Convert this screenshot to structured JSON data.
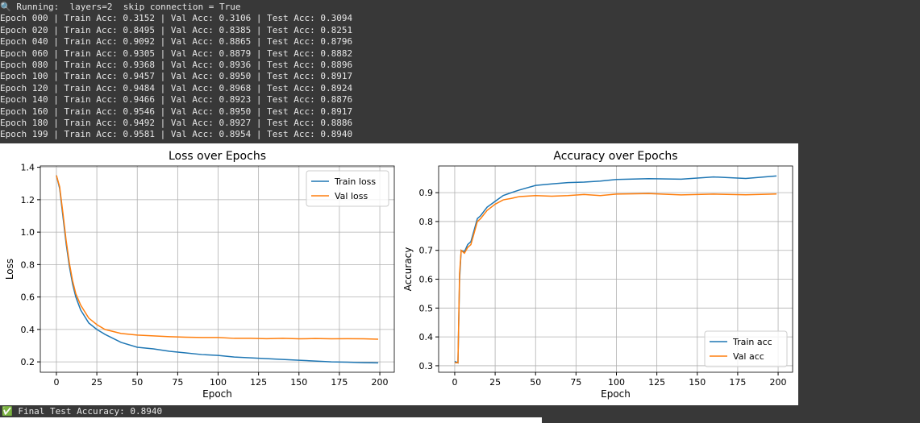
{
  "console": {
    "lines": [
      "🔍 Running:  layers=2  skip connection = True",
      "Epoch 000 | Train Acc: 0.3152 | Val Acc: 0.3106 | Test Acc: 0.3094",
      "Epoch 020 | Train Acc: 0.8495 | Val Acc: 0.8385 | Test Acc: 0.8251",
      "Epoch 040 | Train Acc: 0.9092 | Val Acc: 0.8865 | Test Acc: 0.8796",
      "Epoch 060 | Train Acc: 0.9305 | Val Acc: 0.8879 | Test Acc: 0.8882",
      "Epoch 080 | Train Acc: 0.9368 | Val Acc: 0.8936 | Test Acc: 0.8896",
      "Epoch 100 | Train Acc: 0.9457 | Val Acc: 0.8950 | Test Acc: 0.8917",
      "Epoch 120 | Train Acc: 0.9484 | Val Acc: 0.8968 | Test Acc: 0.8924",
      "Epoch 140 | Train Acc: 0.9466 | Val Acc: 0.8923 | Test Acc: 0.8876",
      "Epoch 160 | Train Acc: 0.9546 | Val Acc: 0.8950 | Test Acc: 0.8917",
      "Epoch 180 | Train Acc: 0.9492 | Val Acc: 0.8927 | Test Acc: 0.8886",
      "Epoch 199 | Train Acc: 0.9581 | Val Acc: 0.8954 | Test Acc: 0.8940"
    ]
  },
  "chart_data": [
    {
      "type": "line",
      "title": "Loss over Epochs",
      "x_label": "Epoch",
      "y_label": "Loss",
      "x": [
        0,
        2,
        4,
        6,
        8,
        10,
        12,
        15,
        20,
        25,
        30,
        40,
        50,
        60,
        70,
        80,
        90,
        100,
        110,
        120,
        130,
        140,
        150,
        160,
        170,
        180,
        190,
        199
      ],
      "series": [
        {
          "name": "Train loss",
          "color": "#1f77b4",
          "values": [
            1.35,
            1.27,
            1.1,
            0.93,
            0.79,
            0.68,
            0.6,
            0.52,
            0.44,
            0.4,
            0.37,
            0.32,
            0.29,
            0.28,
            0.265,
            0.255,
            0.245,
            0.24,
            0.23,
            0.225,
            0.22,
            0.215,
            0.21,
            0.205,
            0.2,
            0.198,
            0.195,
            0.194
          ]
        },
        {
          "name": "Val loss",
          "color": "#ff7f0e",
          "values": [
            1.35,
            1.28,
            1.12,
            0.95,
            0.81,
            0.7,
            0.62,
            0.55,
            0.47,
            0.43,
            0.4,
            0.375,
            0.365,
            0.36,
            0.355,
            0.352,
            0.35,
            0.35,
            0.345,
            0.345,
            0.343,
            0.345,
            0.342,
            0.344,
            0.342,
            0.343,
            0.342,
            0.34
          ]
        }
      ],
      "xlim": [
        -9.95,
        208.95
      ],
      "xticks": [
        0,
        25,
        50,
        75,
        100,
        125,
        150,
        175,
        200
      ],
      "ylim": [
        0.136,
        1.408
      ],
      "yticks": [
        0.2,
        0.4,
        0.6,
        0.8,
        {
          "value": 1,
          "label": "1.0"
        },
        1.2,
        1.4
      ],
      "grid": true,
      "legend": "upper-right"
    },
    {
      "type": "line",
      "title": "Accuracy over Epochs",
      "x_label": "Epoch",
      "y_label": "Accuracy",
      "x": [
        0,
        2,
        3,
        4,
        6,
        8,
        10,
        12,
        14,
        16,
        20,
        25,
        30,
        35,
        40,
        50,
        60,
        70,
        80,
        90,
        100,
        120,
        140,
        160,
        180,
        199
      ],
      "series": [
        {
          "name": "Train acc",
          "color": "#1f77b4",
          "values": [
            0.3152,
            0.31,
            0.6,
            0.7,
            0.695,
            0.72,
            0.73,
            0.77,
            0.81,
            0.82,
            0.8495,
            0.87,
            0.89,
            0.9,
            0.9092,
            0.925,
            0.9305,
            0.935,
            0.9368,
            0.94,
            0.9457,
            0.9484,
            0.9466,
            0.9546,
            0.9492,
            0.9581
          ]
        },
        {
          "name": "Val acc",
          "color": "#ff7f0e",
          "values": [
            0.3106,
            0.31,
            0.62,
            0.7,
            0.69,
            0.71,
            0.72,
            0.76,
            0.8,
            0.81,
            0.8385,
            0.86,
            0.875,
            0.88,
            0.8865,
            0.89,
            0.8879,
            0.89,
            0.8936,
            0.89,
            0.895,
            0.8968,
            0.8923,
            0.895,
            0.8927,
            0.8954
          ]
        }
      ],
      "xlim": [
        -9.95,
        208.95
      ],
      "xticks": [
        0,
        25,
        50,
        75,
        100,
        125,
        150,
        175,
        200
      ],
      "ylim": [
        0.2775,
        0.9925
      ],
      "yticks": [
        0.3,
        0.4,
        0.5,
        0.6,
        0.7,
        0.8,
        0.9
      ],
      "grid": true,
      "legend": "lower-right"
    }
  ],
  "footer": {
    "text": "✅ Final Test Accuracy: 0.8940"
  }
}
